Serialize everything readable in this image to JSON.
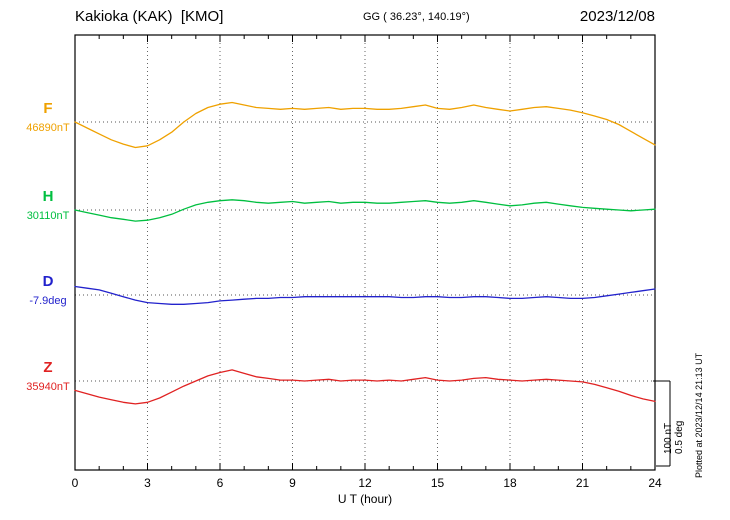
{
  "header": {
    "station": "Kakioka (KAK)  [KMO]",
    "coords": "GG ( 36.23°, 140.19°)",
    "date": "2023/12/08"
  },
  "xaxis": {
    "label": "U T (hour)",
    "ticks": [
      0,
      3,
      6,
      9,
      12,
      15,
      18,
      21,
      24
    ],
    "range": [
      0,
      24
    ],
    "minor_tick_every_hours": 1
  },
  "scale_bar": {
    "nt_label": "100 nT",
    "deg_label": "0.5 deg"
  },
  "footer_note": "Plotted at 2023/12/14 21:13 UT",
  "chart_data": {
    "type": "line",
    "title": "Kakioka (KAK) [KMO] magnetogram 2023/12/08",
    "xlabel": "U T (hour)",
    "xlim": [
      0,
      24
    ],
    "grid": "dotted vertical lines every 3 hours; dotted horizontal baseline per channel",
    "scale": {
      "nT_per_div": 100,
      "deg_per_div": 0.5
    },
    "x_hours": [
      0,
      0.5,
      1,
      1.5,
      2,
      2.5,
      3,
      3.5,
      4,
      4.5,
      5,
      5.5,
      6,
      6.5,
      7,
      7.5,
      8,
      8.5,
      9,
      9.5,
      10,
      10.5,
      11,
      11.5,
      12,
      12.5,
      13,
      13.5,
      14,
      14.5,
      15,
      15.5,
      16,
      16.5,
      17,
      17.5,
      18,
      18.5,
      19,
      19.5,
      20,
      20.5,
      21,
      21.5,
      22,
      22.5,
      23,
      23.5,
      24
    ],
    "series": [
      {
        "name": "F",
        "unit": "nT",
        "baseline_label": "46890nT",
        "base_value": 46890,
        "color": "#efa100",
        "values": [
          46890,
          46883,
          46876,
          46869,
          46864,
          46860,
          46862,
          46869,
          46878,
          46890,
          46900,
          46907,
          46911,
          46913,
          46910,
          46907,
          46906,
          46905,
          46906,
          46905,
          46906,
          46907,
          46905,
          46906,
          46906,
          46905,
          46905,
          46906,
          46908,
          46910,
          46906,
          46905,
          46907,
          46910,
          46907,
          46905,
          46903,
          46905,
          46907,
          46908,
          46906,
          46904,
          46901,
          46897,
          46893,
          46887,
          46879,
          46871,
          46863
        ]
      },
      {
        "name": "H",
        "unit": "nT",
        "baseline_label": "30110nT",
        "base_value": 30110,
        "color": "#00bf40",
        "values": [
          30110,
          30107,
          30104,
          30101,
          30099,
          30097,
          30098,
          30101,
          30105,
          30111,
          30116,
          30119,
          30121,
          30122,
          30121,
          30119,
          30118,
          30119,
          30120,
          30118,
          30119,
          30120,
          30118,
          30119,
          30119,
          30118,
          30118,
          30119,
          30120,
          30121,
          30119,
          30118,
          30119,
          30121,
          30119,
          30117,
          30115,
          30116,
          30118,
          30119,
          30117,
          30115,
          30113,
          30112,
          30111,
          30110,
          30109,
          30110,
          30111
        ]
      },
      {
        "name": "D",
        "unit": "deg",
        "baseline_label": "-7.9deg",
        "base_value": -7.9,
        "color": "#2222cc",
        "values": [
          -7.85,
          -7.86,
          -7.87,
          -7.89,
          -7.91,
          -7.93,
          -7.945,
          -7.95,
          -7.955,
          -7.955,
          -7.95,
          -7.945,
          -7.935,
          -7.93,
          -7.925,
          -7.92,
          -7.92,
          -7.915,
          -7.915,
          -7.91,
          -7.91,
          -7.91,
          -7.91,
          -7.91,
          -7.91,
          -7.91,
          -7.91,
          -7.915,
          -7.915,
          -7.91,
          -7.91,
          -7.915,
          -7.915,
          -7.91,
          -7.91,
          -7.915,
          -7.92,
          -7.92,
          -7.915,
          -7.91,
          -7.915,
          -7.92,
          -7.92,
          -7.915,
          -7.905,
          -7.895,
          -7.885,
          -7.875,
          -7.865
        ]
      },
      {
        "name": "Z",
        "unit": "nT",
        "baseline_label": "35940nT",
        "base_value": 35940,
        "color": "#e02222",
        "values": [
          35929,
          35925,
          35921,
          35918,
          35915,
          35913,
          35915,
          35920,
          35927,
          35934,
          35940,
          35946,
          35950,
          35953,
          35949,
          35945,
          35943,
          35941,
          35941,
          35940,
          35941,
          35942,
          35940,
          35941,
          35941,
          35940,
          35941,
          35940,
          35942,
          35944,
          35941,
          35940,
          35941,
          35943,
          35944,
          35942,
          35941,
          35940,
          35941,
          35942,
          35941,
          35940,
          35939,
          35936,
          35932,
          35928,
          35923,
          35919,
          35916
        ]
      }
    ]
  }
}
